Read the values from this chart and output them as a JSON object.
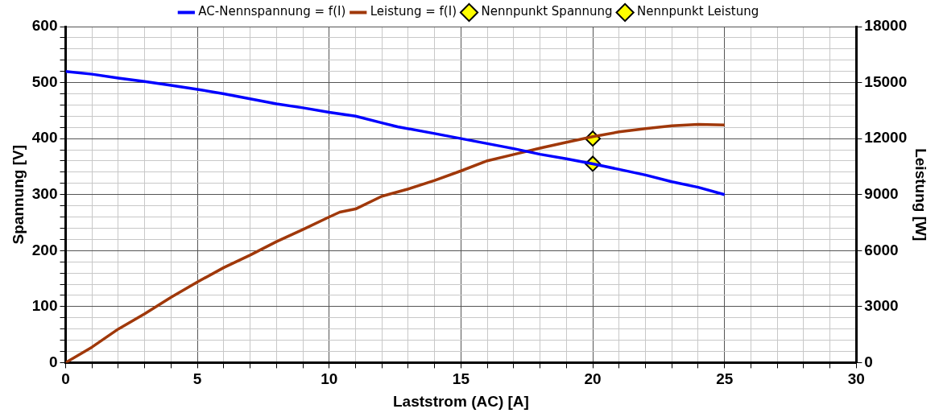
{
  "chart_data": {
    "type": "line",
    "xlabel": "Laststrom (AC) [A]",
    "ylabel": "Spannung [V]",
    "y2label": "Leistung [W]",
    "legend": "top",
    "grid": true,
    "xlim": [
      0,
      30
    ],
    "xticks": [
      0,
      {
        "value": 1,
        "label": null
      },
      {
        "value": 2,
        "label": null
      },
      {
        "value": 3,
        "label": null
      },
      {
        "value": 4,
        "label": null
      },
      5,
      {
        "value": 6,
        "label": null
      },
      {
        "value": 7,
        "label": null
      },
      {
        "value": 8,
        "label": null
      },
      {
        "value": 9,
        "label": null
      },
      10,
      {
        "value": 11,
        "label": null
      },
      {
        "value": 12,
        "label": null
      },
      {
        "value": 13,
        "label": null
      },
      {
        "value": 14,
        "label": null
      },
      15,
      {
        "value": 16,
        "label": null
      },
      {
        "value": 17,
        "label": null
      },
      {
        "value": 18,
        "label": null
      },
      {
        "value": 19,
        "label": null
      },
      20,
      {
        "value": 21,
        "label": null
      },
      {
        "value": 22,
        "label": null
      },
      {
        "value": 23,
        "label": null
      },
      {
        "value": 24,
        "label": null
      },
      25,
      {
        "value": 26,
        "label": null
      },
      {
        "value": 27,
        "label": null
      },
      {
        "value": 28,
        "label": null
      },
      {
        "value": 29,
        "label": null
      },
      30
    ],
    "ylim": [
      0,
      600
    ],
    "yticks": [
      0,
      {
        "value": 20,
        "label": null
      },
      {
        "value": 40,
        "label": null
      },
      {
        "value": 60,
        "label": null
      },
      {
        "value": 80,
        "label": null
      },
      100,
      {
        "value": 120,
        "label": null
      },
      {
        "value": 140,
        "label": null
      },
      {
        "value": 160,
        "label": null
      },
      {
        "value": 180,
        "label": null
      },
      200,
      {
        "value": 220,
        "label": null
      },
      {
        "value": 240,
        "label": null
      },
      {
        "value": 260,
        "label": null
      },
      {
        "value": 280,
        "label": null
      },
      300,
      {
        "value": 320,
        "label": null
      },
      {
        "value": 340,
        "label": null
      },
      {
        "value": 360,
        "label": null
      },
      {
        "value": 380,
        "label": null
      },
      400,
      {
        "value": 420,
        "label": null
      },
      {
        "value": 440,
        "label": null
      },
      {
        "value": 460,
        "label": null
      },
      {
        "value": 480,
        "label": null
      },
      500,
      {
        "value": 520,
        "label": null
      },
      {
        "value": 540,
        "label": null
      },
      {
        "value": 560,
        "label": null
      },
      {
        "value": 580,
        "label": null
      },
      600
    ],
    "y2lim": [
      0,
      18000
    ],
    "y2ticks": [
      0,
      3000,
      6000,
      9000,
      12000,
      15000,
      18000
    ],
    "series": [
      {
        "name": "AC-Nennspannung = f(I)",
        "color": "#0000ff",
        "marker": "none",
        "axis": "y",
        "x": [
          0,
          1,
          2,
          3,
          4,
          5,
          6,
          7,
          8,
          9,
          10,
          11,
          12,
          12.6,
          14,
          15,
          16,
          17,
          18,
          19,
          20,
          21,
          22,
          23,
          24,
          25
        ],
        "values": [
          520,
          515,
          508,
          502,
          495,
          488,
          480,
          471,
          462,
          455,
          447,
          440,
          428,
          421,
          409,
          400,
          391,
          382,
          372,
          364,
          355,
          345,
          335,
          323,
          313,
          300
        ]
      },
      {
        "name": "Leistung = f(I)",
        "color": "#a0380a",
        "marker": "none",
        "axis": "y2",
        "x": [
          0,
          1,
          2,
          3,
          4,
          5,
          6,
          7,
          8,
          9,
          10,
          10.4,
          11,
          12,
          13,
          14,
          15,
          16,
          17,
          18,
          19,
          20,
          21,
          22,
          23,
          24,
          25
        ],
        "values": [
          0,
          830,
          1800,
          2620,
          3500,
          4320,
          5090,
          5760,
          6480,
          7130,
          7800,
          8060,
          8230,
          8910,
          9300,
          9760,
          10270,
          10810,
          11150,
          11490,
          11800,
          12100,
          12360,
          12530,
          12680,
          12760,
          12730
        ]
      },
      {
        "name": "Nennpunkt Spannung",
        "type": "scatter",
        "color": "#ffff00",
        "marker": "diamond",
        "axis": "y",
        "x": [
          20
        ],
        "values": [
          355
        ]
      },
      {
        "name": "Nennpunkt Leistung",
        "type": "scatter",
        "color": "#ffff00",
        "marker": "diamond",
        "axis": "y2",
        "x": [
          20
        ],
        "values": [
          12000
        ]
      }
    ]
  }
}
